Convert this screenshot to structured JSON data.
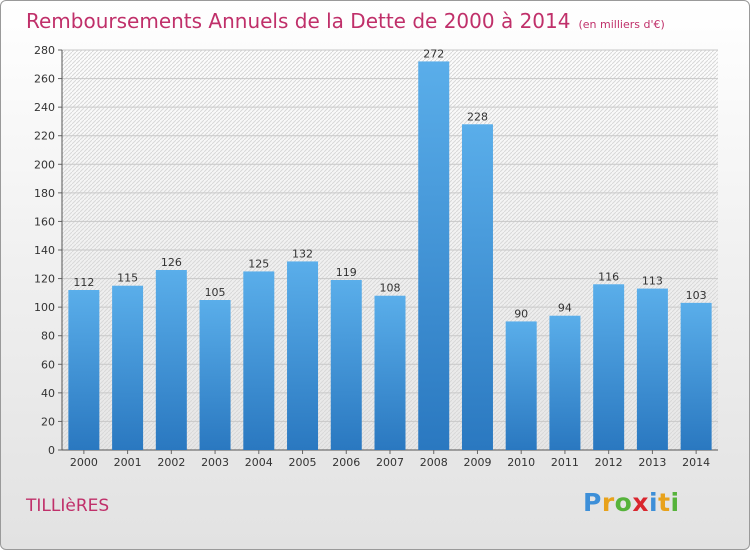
{
  "title": "Remboursements Annuels de la Dette de 2000 à 2014",
  "subtitle": "(en milliers d'€)",
  "town": "TILLIèRES",
  "logo": {
    "letters": [
      "P",
      "r",
      "o",
      "x",
      "i",
      "t",
      "i"
    ],
    "colors": [
      "#3d8fd8",
      "#e8a21b",
      "#56b33b",
      "#d9262e",
      "#3d8fd8",
      "#e8a21b",
      "#56b33b"
    ]
  },
  "colors": {
    "bar": "#3a8fd6",
    "title": "#c0306a"
  },
  "chart_data": {
    "type": "bar",
    "categories": [
      "2000",
      "2001",
      "2002",
      "2003",
      "2004",
      "2005",
      "2006",
      "2007",
      "2008",
      "2009",
      "2010",
      "2011",
      "2012",
      "2013",
      "2014"
    ],
    "values": [
      112,
      115,
      126,
      105,
      125,
      132,
      119,
      108,
      272,
      228,
      90,
      94,
      116,
      113,
      103
    ],
    "ylim": [
      0,
      280
    ],
    "ytick_step": 20,
    "grid": true,
    "xlabel": "",
    "ylabel": ""
  }
}
